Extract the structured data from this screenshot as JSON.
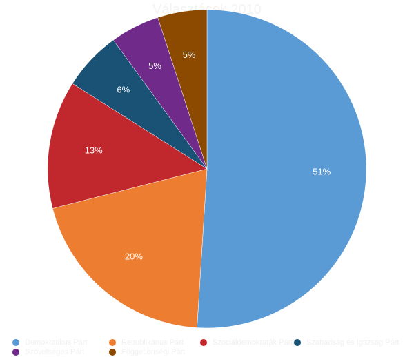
{
  "chart_data": {
    "type": "pie",
    "title": "Választások 2010",
    "categories": [
      "Demokratikus Párt",
      "Republikánus Párt",
      "Szociáldemokraták Pártja",
      "Szabadság és Igazság Párt",
      "Szövetséges Párt",
      "Függetlenségi Párt"
    ],
    "values": [
      51,
      20,
      13,
      6,
      5,
      5
    ],
    "labels": [
      "51%",
      "20%",
      "13%",
      "6%",
      "5%",
      "5%"
    ],
    "colors": [
      "#5b9bd5",
      "#ed7d31",
      "#c0282d",
      "#1a5276",
      "#6f2a8a",
      "#8b4a00"
    ],
    "legend_position": "bottom"
  }
}
